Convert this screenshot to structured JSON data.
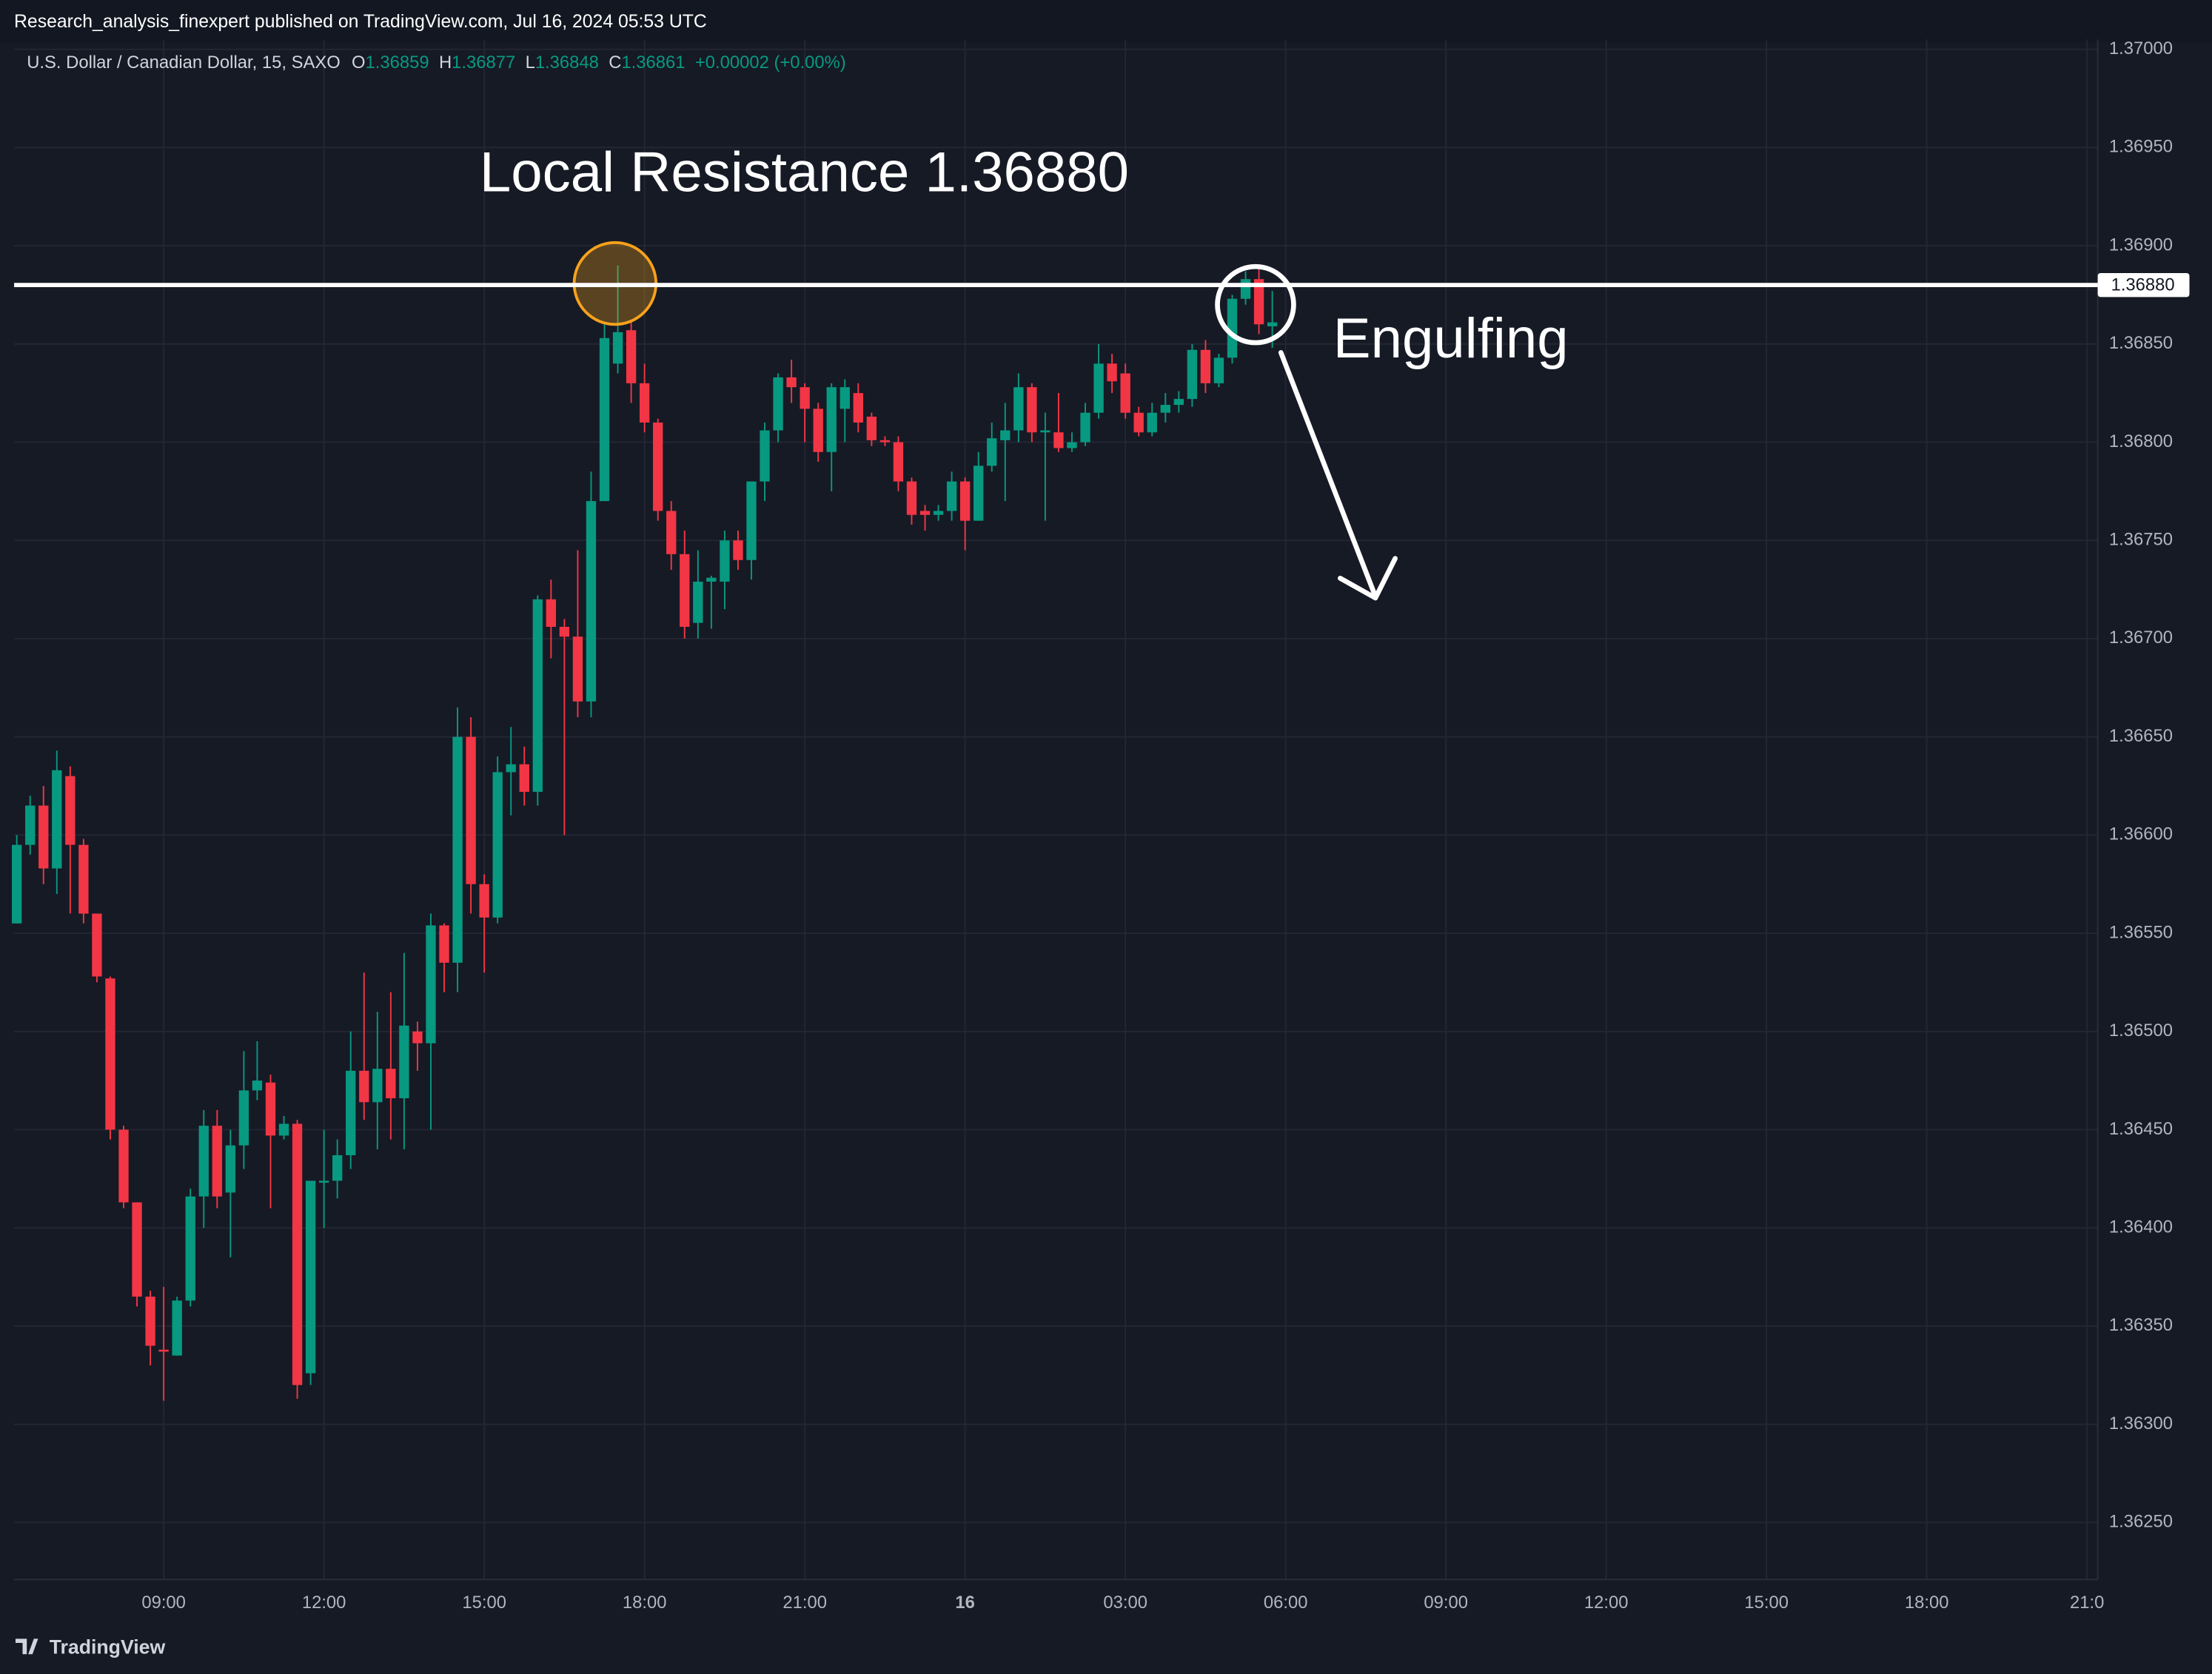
{
  "header": {
    "publisher": "Research_analysis_finexpert published on TradingView.com, Jul 16, 2024 05:53 UTC",
    "symbol": "U.S. Dollar / Canadian Dollar, 15, SAXO",
    "ohlc": [
      {
        "key": "O",
        "value": "1.36859"
      },
      {
        "key": "H",
        "value": "1.36877"
      },
      {
        "key": "L",
        "value": "1.36848"
      },
      {
        "key": "C",
        "value": "1.36861"
      }
    ],
    "change": "+0.00002 (+0.00%)"
  },
  "footer": {
    "brand": "TradingView"
  },
  "chart_data": {
    "type": "candlestick",
    "up_color": "#089981",
    "down_color": "#f23645",
    "grid": true,
    "open": [
      1.36555,
      1.36595,
      1.36615,
      1.36583,
      1.3663,
      1.36595,
      1.3656,
      1.36527,
      1.3645,
      1.36413,
      1.36365,
      1.36338,
      1.36335,
      1.36363,
      1.36416,
      1.36452,
      1.36418,
      1.36442,
      1.3647,
      1.36474,
      1.36447,
      1.36453,
      1.36326,
      1.36423,
      1.36424,
      1.36437,
      1.3648,
      1.36464,
      1.36481,
      1.36466,
      1.365,
      1.36494,
      1.36554,
      1.36535,
      1.3665,
      1.36575,
      1.36558,
      1.36632,
      1.36636,
      1.36622,
      1.3672,
      1.36706,
      1.36701,
      1.36668,
      1.3677,
      1.3684,
      1.36857,
      1.3683,
      1.3681,
      1.36765,
      1.36743,
      1.36708,
      1.36729,
      1.36729,
      1.3675,
      1.3674,
      1.3678,
      1.36806,
      1.36833,
      1.36828,
      1.36817,
      1.36795,
      1.36817,
      1.36825,
      1.36813,
      1.36801,
      1.368,
      1.3678,
      1.36765,
      1.36763,
      1.36765,
      1.3678,
      1.3676,
      1.36788,
      1.36801,
      1.36806,
      1.36828,
      1.36805,
      1.36805,
      1.36797,
      1.368,
      1.36815,
      1.3684,
      1.36835,
      1.36815,
      1.36805,
      1.36815,
      1.36819,
      1.36822,
      1.36847,
      1.3683,
      1.36843,
      1.36873,
      1.36883,
      1.36859
    ],
    "high": [
      1.366,
      1.3662,
      1.36625,
      1.36643,
      1.36635,
      1.36598,
      1.3656,
      1.36528,
      1.36452,
      1.36413,
      1.36368,
      1.3637,
      1.36365,
      1.3642,
      1.3646,
      1.3646,
      1.3645,
      1.3649,
      1.36495,
      1.36478,
      1.36457,
      1.36455,
      1.36424,
      1.3645,
      1.36445,
      1.365,
      1.3653,
      1.3651,
      1.3652,
      1.3654,
      1.36505,
      1.3656,
      1.36555,
      1.36665,
      1.3666,
      1.3658,
      1.3664,
      1.36655,
      1.36645,
      1.36722,
      1.3673,
      1.3671,
      1.36745,
      1.36785,
      1.3686,
      1.3689,
      1.36862,
      1.3684,
      1.36812,
      1.3677,
      1.36755,
      1.36745,
      1.36732,
      1.36755,
      1.36755,
      1.3678,
      1.3681,
      1.36835,
      1.36842,
      1.3683,
      1.3682,
      1.3683,
      1.36832,
      1.3683,
      1.36815,
      1.36803,
      1.36803,
      1.36782,
      1.36768,
      1.36768,
      1.36785,
      1.36782,
      1.36795,
      1.3681,
      1.3682,
      1.36835,
      1.3683,
      1.36815,
      1.36825,
      1.36805,
      1.3682,
      1.3685,
      1.36845,
      1.3684,
      1.36818,
      1.3682,
      1.36825,
      1.36826,
      1.3685,
      1.36852,
      1.36845,
      1.36875,
      1.36887,
      1.3689,
      1.36877
    ],
    "low": [
      1.36555,
      1.3659,
      1.36575,
      1.3657,
      1.3656,
      1.36555,
      1.36525,
      1.36445,
      1.3641,
      1.3636,
      1.3633,
      1.36312,
      1.36335,
      1.3636,
      1.364,
      1.3641,
      1.36385,
      1.3643,
      1.36465,
      1.3641,
      1.36445,
      1.36313,
      1.3632,
      1.364,
      1.36415,
      1.3643,
      1.36455,
      1.3644,
      1.36445,
      1.3644,
      1.3648,
      1.3645,
      1.3652,
      1.3652,
      1.3656,
      1.3653,
      1.36555,
      1.3661,
      1.36615,
      1.36615,
      1.3669,
      1.366,
      1.3666,
      1.3666,
      1.3677,
      1.36835,
      1.3682,
      1.36805,
      1.3676,
      1.36735,
      1.367,
      1.367,
      1.36705,
      1.36715,
      1.36735,
      1.3673,
      1.3677,
      1.368,
      1.3682,
      1.368,
      1.3679,
      1.36775,
      1.368,
      1.36805,
      1.36798,
      1.36798,
      1.36775,
      1.36758,
      1.36755,
      1.3676,
      1.3676,
      1.36745,
      1.3676,
      1.36785,
      1.3677,
      1.368,
      1.368,
      1.3676,
      1.36795,
      1.36795,
      1.36798,
      1.36812,
      1.36825,
      1.36812,
      1.36803,
      1.36803,
      1.3681,
      1.36815,
      1.36818,
      1.36825,
      1.36828,
      1.3684,
      1.3687,
      1.36855,
      1.36848
    ],
    "close": [
      1.36595,
      1.36615,
      1.36583,
      1.36633,
      1.36595,
      1.3656,
      1.36528,
      1.3645,
      1.36413,
      1.36365,
      1.3634,
      1.36337,
      1.36363,
      1.36416,
      1.36452,
      1.36416,
      1.36442,
      1.3647,
      1.36475,
      1.36447,
      1.36453,
      1.3632,
      1.36424,
      1.36424,
      1.36437,
      1.3648,
      1.36464,
      1.36481,
      1.36466,
      1.36503,
      1.36494,
      1.36554,
      1.36535,
      1.3665,
      1.36575,
      1.36558,
      1.36632,
      1.36636,
      1.36622,
      1.3672,
      1.36706,
      1.36701,
      1.36668,
      1.3677,
      1.36853,
      1.36856,
      1.3683,
      1.3681,
      1.36765,
      1.36743,
      1.36706,
      1.36729,
      1.36731,
      1.3675,
      1.3674,
      1.3678,
      1.36806,
      1.36833,
      1.36828,
      1.36817,
      1.36795,
      1.36828,
      1.36828,
      1.3681,
      1.36801,
      1.368,
      1.3678,
      1.36763,
      1.36763,
      1.36765,
      1.3678,
      1.3676,
      1.36788,
      1.36802,
      1.36806,
      1.36828,
      1.36805,
      1.36806,
      1.36797,
      1.368,
      1.36815,
      1.3684,
      1.36831,
      1.36815,
      1.36805,
      1.36815,
      1.36819,
      1.36822,
      1.36847,
      1.3683,
      1.36843,
      1.36873,
      1.36883,
      1.3686,
      1.36861
    ],
    "xlim": [
      -0.2,
      155.8
    ],
    "xticks": [
      {
        "value": 11,
        "label": "09:00"
      },
      {
        "value": 23,
        "label": "12:00"
      },
      {
        "value": 35,
        "label": "15:00"
      },
      {
        "value": 47,
        "label": "18:00"
      },
      {
        "value": 59,
        "label": "21:00"
      },
      {
        "value": 71,
        "label": "16",
        "bold": true
      },
      {
        "value": 83,
        "label": "03:00"
      },
      {
        "value": 95,
        "label": "06:00"
      },
      {
        "value": 107,
        "label": "09:00"
      },
      {
        "value": 119,
        "label": "12:00"
      },
      {
        "value": 131,
        "label": "15:00"
      },
      {
        "value": 143,
        "label": "18:00"
      },
      {
        "value": 155,
        "label": "21:0"
      }
    ],
    "ylim": [
      1.36221,
      1.37005
    ],
    "yticks": [
      {
        "value": 1.3625,
        "label": "1.36250"
      },
      {
        "value": 1.363,
        "label": "1.36300"
      },
      {
        "value": 1.3635,
        "label": "1.36350"
      },
      {
        "value": 1.364,
        "label": "1.36400"
      },
      {
        "value": 1.3645,
        "label": "1.36450"
      },
      {
        "value": 1.365,
        "label": "1.36500"
      },
      {
        "value": 1.3655,
        "label": "1.36550"
      },
      {
        "value": 1.366,
        "label": "1.36600"
      },
      {
        "value": 1.3665,
        "label": "1.36650"
      },
      {
        "value": 1.367,
        "label": "1.36700"
      },
      {
        "value": 1.3675,
        "label": "1.36750"
      },
      {
        "value": 1.368,
        "label": "1.36800"
      },
      {
        "value": 1.3685,
        "label": "1.36850"
      },
      {
        "value": 1.369,
        "label": "1.36900"
      },
      {
        "value": 1.3695,
        "label": "1.36950"
      },
      {
        "value": 1.37,
        "label": "1.37000"
      }
    ],
    "hline": {
      "value": 1.3688,
      "label": "1.36880"
    },
    "annotations": [
      "Local Resistance 1.36880",
      "Engulfing"
    ]
  }
}
